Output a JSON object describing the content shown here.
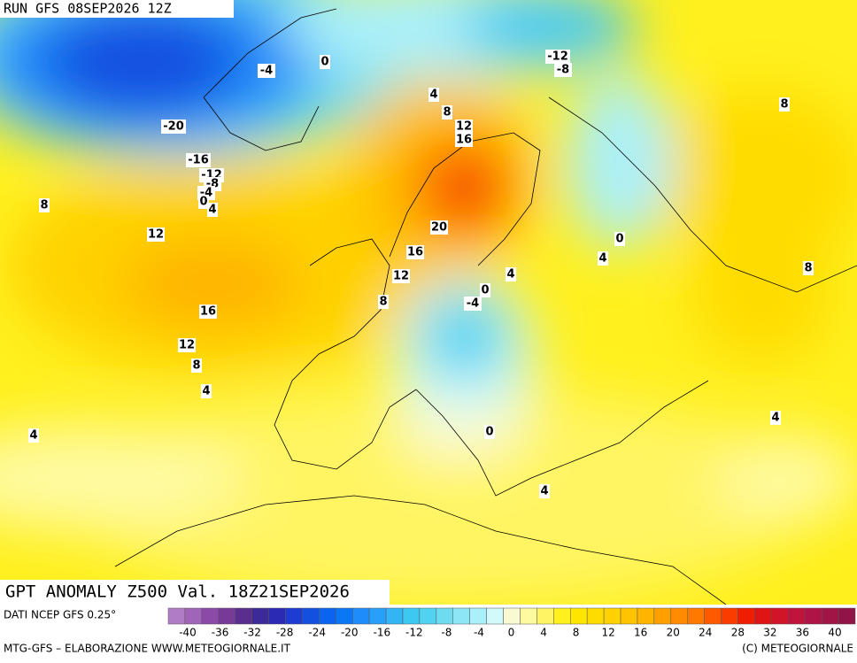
{
  "header": {
    "run": "RUN GFS 08SEP2026 12Z"
  },
  "title": "GPT ANOMALY Z500 Val. 18Z21SEP2026",
  "source": "DATI NCEP GFS 0.25°",
  "footer": {
    "left": "MTG-GFS – ELABORAZIONE WWW.METEOGIORNALE.IT",
    "right": "(C) METEOGIORNALE"
  },
  "colorbar": {
    "colors": [
      "#b07cc6",
      "#a064b8",
      "#8c4aa8",
      "#783a98",
      "#5a2e8c",
      "#3c2a98",
      "#2a2ab4",
      "#1e3cd2",
      "#1450e0",
      "#0a64f0",
      "#0a78f5",
      "#1e8cfa",
      "#28a0fa",
      "#32b4f5",
      "#3cc8f0",
      "#50d2f0",
      "#6edcf0",
      "#8ce6f5",
      "#aaf0fa",
      "#d2fafa",
      "#fafad2",
      "#fffaa0",
      "#fff564",
      "#fff01e",
      "#ffe600",
      "#ffdc00",
      "#ffd200",
      "#ffc300",
      "#ffb400",
      "#ffa000",
      "#ff8c00",
      "#ff7800",
      "#ff5a00",
      "#fa3c00",
      "#f01e00",
      "#e01414",
      "#d21428",
      "#c0143c",
      "#b01446",
      "#a01446",
      "#901446"
    ],
    "ticks": [
      -40,
      -36,
      -32,
      -28,
      -24,
      -20,
      -16,
      -12,
      -8,
      -4,
      0,
      4,
      8,
      12,
      16,
      20,
      24,
      28,
      32,
      36,
      40
    ]
  },
  "contour_labels": [
    0,
    -4,
    -20,
    -16,
    -12,
    -8,
    -4,
    0,
    4,
    8,
    12,
    16,
    12,
    8,
    4,
    4,
    4,
    8,
    12,
    16,
    20,
    16,
    12,
    8,
    0,
    -4,
    4,
    0,
    4,
    8,
    8,
    4,
    0,
    4,
    -12,
    -8
  ]
}
